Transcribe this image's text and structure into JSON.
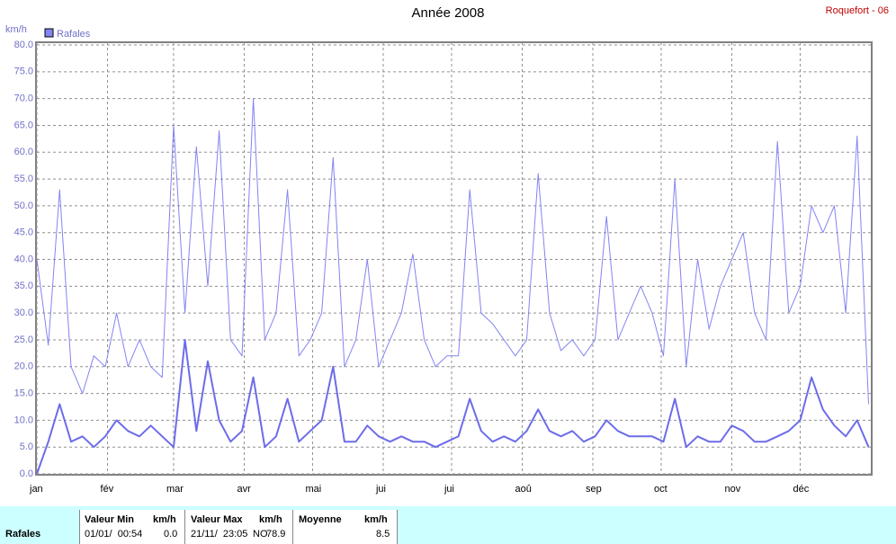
{
  "chart_data": {
    "type": "line",
    "title": "Année 2008",
    "station": "Roquefort - 06",
    "y_label": "km/h",
    "x": [
      0,
      5,
      10,
      15,
      20,
      25,
      30,
      35,
      40,
      45,
      50,
      55,
      60,
      65,
      70,
      75,
      80,
      85,
      90,
      95,
      100,
      105,
      110,
      115,
      120,
      125,
      130,
      135,
      140,
      145,
      150,
      155,
      160,
      165,
      170,
      175,
      180,
      185,
      190,
      195,
      200,
      205,
      210,
      215,
      220,
      225,
      230,
      235,
      240,
      245,
      250,
      255,
      260,
      265,
      270,
      275,
      280,
      285,
      290,
      295,
      300,
      305,
      310,
      315,
      320,
      325,
      330,
      335,
      340,
      345,
      350,
      355,
      360,
      365
    ],
    "xlim": [
      0,
      366
    ],
    "xticks": [
      {
        "value": 0,
        "label": "jan"
      },
      {
        "value": 31,
        "label": "fév"
      },
      {
        "value": 60,
        "label": "mar"
      },
      {
        "value": 91,
        "label": "avr"
      },
      {
        "value": 121,
        "label": "mai"
      },
      {
        "value": 152,
        "label": "jui"
      },
      {
        "value": 182,
        "label": "jui"
      },
      {
        "value": 213,
        "label": "aoû"
      },
      {
        "value": 244,
        "label": "sep"
      },
      {
        "value": 274,
        "label": "oct"
      },
      {
        "value": 305,
        "label": "nov"
      },
      {
        "value": 335,
        "label": "déc"
      }
    ],
    "ylim": [
      0,
      80
    ],
    "yticks": [
      {
        "value": 0,
        "label": "0.0"
      },
      {
        "value": 5,
        "label": "5.0"
      },
      {
        "value": 10,
        "label": "10.0"
      },
      {
        "value": 15,
        "label": "15.0"
      },
      {
        "value": 20,
        "label": "20.0"
      },
      {
        "value": 25,
        "label": "25.0"
      },
      {
        "value": 30,
        "label": "30.0"
      },
      {
        "value": 35,
        "label": "35.0"
      },
      {
        "value": 40,
        "label": "40.0"
      },
      {
        "value": 45,
        "label": "45.0"
      },
      {
        "value": 50,
        "label": "50.0"
      },
      {
        "value": 55,
        "label": "55.0"
      },
      {
        "value": 60,
        "label": "60.0"
      },
      {
        "value": 65,
        "label": "65.0"
      },
      {
        "value": 70,
        "label": "70.0"
      },
      {
        "value": 75,
        "label": "75.0"
      },
      {
        "value": 80,
        "label": "80.0"
      }
    ],
    "grid": true,
    "series": [
      {
        "name": "Rafales",
        "color": "#8484f2",
        "width": 1,
        "values": [
          40,
          24,
          53,
          20,
          15,
          22,
          20,
          30,
          20,
          25,
          20,
          18,
          65,
          30,
          61,
          35,
          64,
          25,
          22,
          70,
          25,
          30,
          53,
          22,
          25,
          30,
          59,
          20,
          25,
          40,
          20,
          25,
          30,
          41,
          25,
          20,
          22,
          22,
          53,
          30,
          28,
          25,
          22,
          25,
          56,
          30,
          23,
          25,
          22,
          25,
          48,
          25,
          30,
          35,
          30,
          22,
          55,
          20,
          40,
          27,
          35,
          40,
          45,
          30,
          25,
          62,
          30,
          35,
          50,
          45,
          50,
          30,
          63,
          13
        ]
      },
      {
        "color": "#6c6cea",
        "width": 2,
        "values": [
          0,
          6,
          13,
          6,
          7,
          5,
          7,
          10,
          8,
          7,
          9,
          7,
          5,
          25,
          8,
          21,
          10,
          6,
          8,
          18,
          5,
          7,
          14,
          6,
          8,
          10,
          20,
          6,
          6,
          9,
          7,
          6,
          7,
          6,
          6,
          5,
          6,
          7,
          14,
          8,
          6,
          7,
          6,
          8,
          12,
          8,
          7,
          8,
          6,
          7,
          10,
          8,
          7,
          7,
          7,
          6,
          14,
          5,
          7,
          6,
          6,
          9,
          8,
          6,
          6,
          7,
          8,
          10,
          18,
          12,
          9,
          7,
          10,
          5
        ]
      }
    ]
  },
  "table": {
    "row_label": "Rafales",
    "headers": [
      "Valeur Min",
      "km/h",
      "Valeur Max",
      "km/h",
      "Moyenne",
      "km/h"
    ],
    "min_date": "01/01/  00:54",
    "min_value": "0.0",
    "max_date": "21/11/  23:05",
    "max_dir": "NO",
    "max_value": "78.9",
    "mean_value": "8.5"
  }
}
